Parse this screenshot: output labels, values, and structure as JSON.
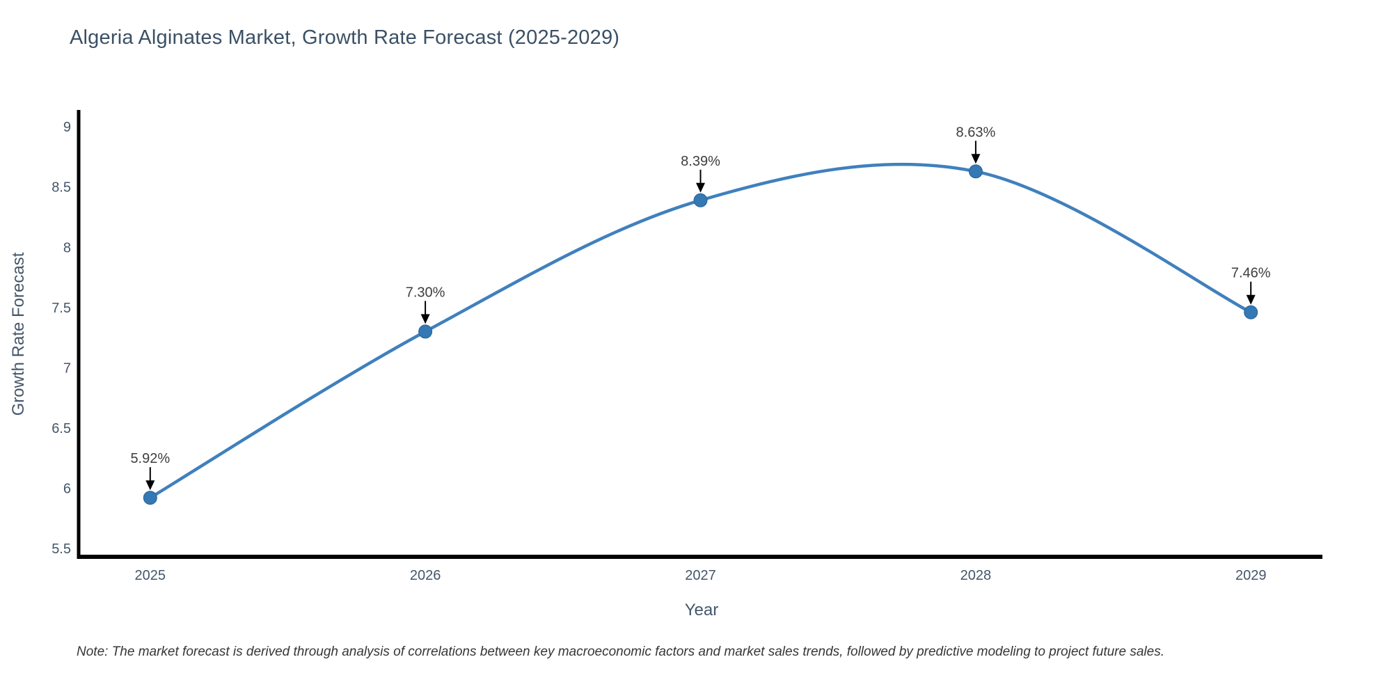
{
  "chart_data": {
    "type": "line",
    "title": "Algeria Alginates Market, Growth Rate Forecast (2025-2029)",
    "xlabel": "Year",
    "ylabel": "Growth Rate Forecast",
    "x": [
      2025,
      2026,
      2027,
      2028,
      2029
    ],
    "values": [
      5.92,
      7.3,
      8.39,
      8.63,
      7.46
    ],
    "point_labels": [
      "5.92%",
      "7.30%",
      "8.39%",
      "8.63%",
      "7.46%"
    ],
    "yticks": [
      5.5,
      6,
      6.5,
      7,
      7.5,
      8,
      8.5,
      9
    ],
    "ylim": [
      5.43,
      9.14
    ],
    "xlim_years": [
      2024.74,
      2029.26
    ],
    "line_shape": "spline",
    "grid": false,
    "legend": "none",
    "note": "Note: The market forecast is derived through analysis of correlations between key macroeconomic factors and market sales trends, followed by predictive modeling to project future sales.",
    "colors": {
      "line": "#4080bd",
      "marker": "#3478b5",
      "marker_edge": "#2b628f",
      "arrow": "#000000",
      "axis": "#000000",
      "tick_label": "#44566a",
      "axis_title": "#44566a",
      "annotation": "#3d3d3d",
      "title": "#3b5065",
      "note": "#363636"
    }
  }
}
